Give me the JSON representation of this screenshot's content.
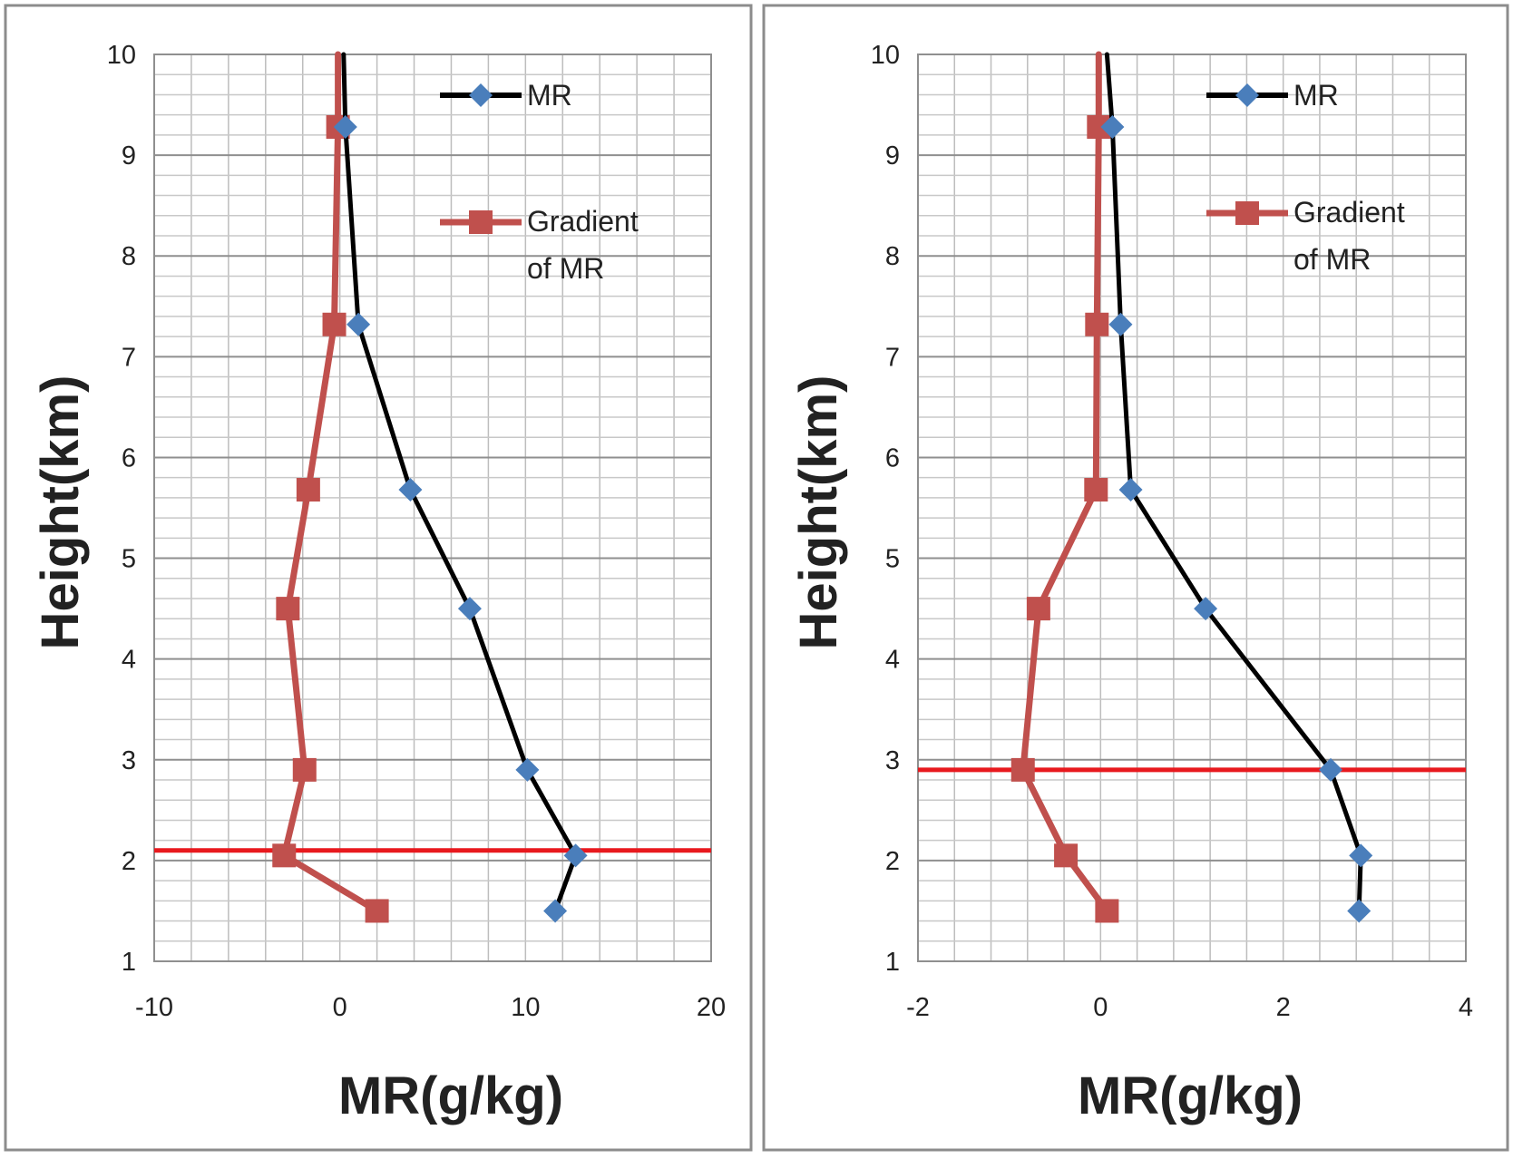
{
  "chart_data": [
    {
      "type": "line",
      "orientation": "vertical-profile",
      "xlabel": "MR(g/kg)",
      "ylabel": "Height(km)",
      "xlim": [
        -10,
        20
      ],
      "ylim": [
        1,
        10
      ],
      "x_ticks": [
        "-10",
        "0",
        "10",
        "20"
      ],
      "y_ticks": [
        "1",
        "2",
        "3",
        "4",
        "5",
        "6",
        "7",
        "8",
        "9",
        "10"
      ],
      "grid": true,
      "legend_position": "top-right",
      "series": [
        {
          "name": "MR",
          "color": "#000000",
          "marker": "diamond",
          "marker_color": "#4a7ebb",
          "points": [
            {
              "x": 11.6,
              "y": 1.5
            },
            {
              "x": 12.7,
              "y": 2.05
            },
            {
              "x": 10.1,
              "y": 2.9
            },
            {
              "x": 7.0,
              "y": 4.5
            },
            {
              "x": 3.8,
              "y": 5.68
            },
            {
              "x": 1.0,
              "y": 7.32
            },
            {
              "x": 0.3,
              "y": 9.28
            },
            {
              "x": 0.2,
              "y": 10.0
            }
          ]
        },
        {
          "name": "Gradient of MR",
          "color": "#c0504d",
          "marker": "square",
          "marker_color": "#c0504d",
          "points": [
            {
              "x": 2.0,
              "y": 1.5
            },
            {
              "x": -3.0,
              "y": 2.05
            },
            {
              "x": -1.9,
              "y": 2.9
            },
            {
              "x": -2.8,
              "y": 4.5
            },
            {
              "x": -1.7,
              "y": 5.68
            },
            {
              "x": -0.3,
              "y": 7.32
            },
            {
              "x": -0.1,
              "y": 9.28
            },
            {
              "x": -0.1,
              "y": 10.0
            }
          ]
        }
      ],
      "reference_line": {
        "y": 2.1,
        "color": "#e8191e"
      }
    },
    {
      "type": "line",
      "orientation": "vertical-profile",
      "xlabel": "MR(g/kg)",
      "ylabel": "Height(km)",
      "xlim": [
        -2,
        4
      ],
      "ylim": [
        1,
        10
      ],
      "x_ticks": [
        "-2",
        "0",
        "2",
        "4"
      ],
      "y_ticks": [
        "1",
        "2",
        "3",
        "4",
        "5",
        "6",
        "7",
        "8",
        "9",
        "10"
      ],
      "grid": true,
      "legend_position": "top-right",
      "series": [
        {
          "name": "MR",
          "color": "#000000",
          "marker": "diamond",
          "marker_color": "#4a7ebb",
          "points": [
            {
              "x": 2.83,
              "y": 1.5
            },
            {
              "x": 2.85,
              "y": 2.05
            },
            {
              "x": 2.52,
              "y": 2.9
            },
            {
              "x": 1.15,
              "y": 4.5
            },
            {
              "x": 0.33,
              "y": 5.68
            },
            {
              "x": 0.22,
              "y": 7.32
            },
            {
              "x": 0.13,
              "y": 9.28
            },
            {
              "x": 0.07,
              "y": 10.0
            }
          ]
        },
        {
          "name": "Gradient of MR",
          "color": "#c0504d",
          "marker": "square",
          "marker_color": "#c0504d",
          "points": [
            {
              "x": 0.07,
              "y": 1.5
            },
            {
              "x": -0.38,
              "y": 2.05
            },
            {
              "x": -0.85,
              "y": 2.9
            },
            {
              "x": -0.68,
              "y": 4.5
            },
            {
              "x": -0.05,
              "y": 5.68
            },
            {
              "x": -0.04,
              "y": 7.32
            },
            {
              "x": -0.02,
              "y": 9.28
            },
            {
              "x": -0.02,
              "y": 10.0
            }
          ]
        }
      ],
      "reference_line": {
        "y": 2.9,
        "color": "#e8191e"
      }
    }
  ],
  "legend": {
    "mr_label": "MR",
    "gradient_label_line1": "Gradient",
    "gradient_label_line2": "of MR"
  }
}
